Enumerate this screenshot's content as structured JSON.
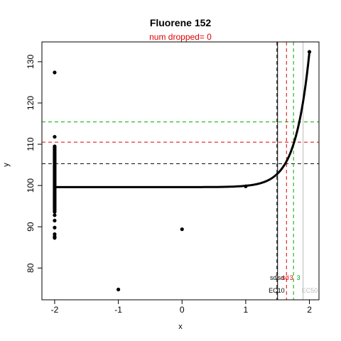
{
  "chart_data": {
    "type": "scatter",
    "title": "Fluorene 152",
    "subtitle": "num dropped= 0",
    "xlabel": "x",
    "ylabel": "y",
    "xlim": [
      -2.2,
      2.15
    ],
    "ylim": [
      72.3,
      134.8
    ],
    "xticks": [
      -2,
      -1,
      0,
      1,
      2
    ],
    "yticks": [
      80,
      90,
      100,
      110,
      120,
      130
    ],
    "xtick_labels": [
      "-2",
      "-1",
      "0",
      "1",
      "2"
    ],
    "ytick_labels": [
      "80",
      "90",
      "100",
      "110",
      "120",
      "130"
    ],
    "points_x_minus2": [
      127.4,
      111.8,
      109.5,
      109.2,
      108.9,
      108.6,
      108.3,
      108.0,
      107.7,
      107.4,
      107.1,
      106.8,
      106.5,
      106.2,
      105.9,
      105.6,
      105.3,
      105.0,
      104.7,
      104.4,
      104.1,
      103.8,
      103.5,
      103.2,
      102.9,
      102.6,
      102.3,
      102.0,
      101.7,
      101.4,
      101.1,
      100.8,
      100.5,
      100.2,
      99.9,
      99.6,
      99.3,
      99.0,
      98.7,
      98.4,
      98.1,
      97.8,
      97.5,
      97.2,
      96.9,
      96.6,
      96.3,
      96.0,
      95.7,
      95.4,
      95.1,
      94.8,
      94.5,
      94.2,
      93.9,
      93.6,
      92.8,
      91.5,
      89.8,
      88.2,
      87.6,
      87.3
    ],
    "points_other": [
      {
        "x": -1,
        "y": 74.8
      },
      {
        "x": 0,
        "y": 89.4
      },
      {
        "x": 1,
        "y": 99.8
      },
      {
        "x": 2,
        "y": 132.4
      }
    ],
    "fit_curve": {
      "baseline": 99.6,
      "y_at_2": 132.4,
      "start_x": -2
    },
    "hlines": [
      {
        "y": 105.3,
        "color": "#000000"
      },
      {
        "y": 110.5,
        "color": "#dd0000"
      },
      {
        "y": 115.4,
        "color": "#00aa00"
      }
    ],
    "vlines": [
      {
        "x": 1.49,
        "color": "#000000",
        "style": "dashed"
      },
      {
        "x": 1.5,
        "color": "#000000",
        "style": "solid"
      },
      {
        "x": 1.64,
        "color": "#dd0000",
        "style": "dashed"
      },
      {
        "x": 1.75,
        "color": "#00aa00",
        "style": "dashed"
      },
      {
        "x": 1.9,
        "color": "#bbbbbb",
        "style": "solid"
      }
    ],
    "annotations": [
      {
        "text": "sd",
        "x": 1.38,
        "y": 77.1,
        "color": "#000000"
      },
      {
        "text": "sd",
        "x": 1.5,
        "y": 77.1,
        "color": "#000000"
      },
      {
        "text": "sd",
        "x": 1.57,
        "y": 77.1,
        "color": "#dd0000"
      },
      {
        "text": "3",
        "x": 1.69,
        "y": 77.1,
        "color": "#dd0000"
      },
      {
        "text": "3",
        "x": 1.8,
        "y": 77.1,
        "color": "#00aa00"
      },
      {
        "text": "EC10",
        "x": 1.36,
        "y": 74.0,
        "color": "#000000"
      },
      {
        "text": "EC50",
        "x": 1.88,
        "y": 74.0,
        "color": "#bbbbbb"
      }
    ]
  }
}
